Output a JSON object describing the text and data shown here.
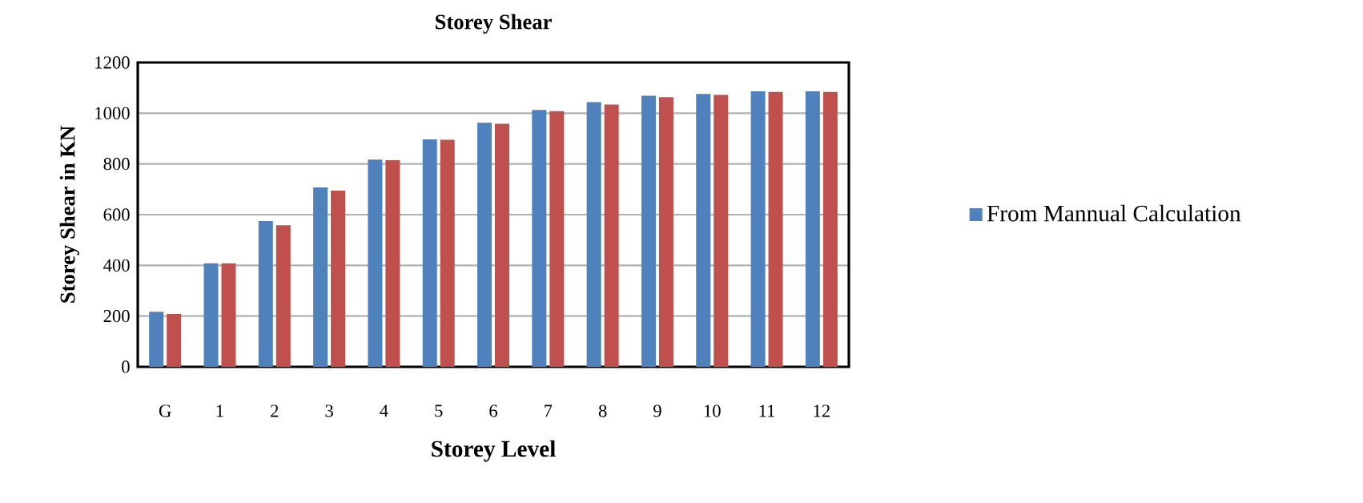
{
  "chart_data": {
    "type": "bar",
    "title": "Storey Shear",
    "xlabel": "Storey Level",
    "ylabel": "Storey  Shear in KN",
    "categories": [
      "G",
      "1",
      "2",
      "3",
      "4",
      "5",
      "6",
      "7",
      "8",
      "9",
      "10",
      "11",
      "12"
    ],
    "series": [
      {
        "name": "From Mannual Calculation",
        "color": "#4f81bd",
        "values": [
          217,
          408,
          575,
          707,
          817,
          897,
          962,
          1013,
          1044,
          1069,
          1076,
          1086,
          1086
        ]
      },
      {
        "color": "#c0504d",
        "values": [
          208,
          408,
          558,
          695,
          815,
          895,
          958,
          1008,
          1034,
          1063,
          1072,
          1084,
          1084
        ]
      }
    ],
    "ylim": [
      0,
      1200
    ],
    "yticks": [
      0,
      200,
      400,
      600,
      800,
      1000,
      1200
    ],
    "grid": "y",
    "legend": "right"
  }
}
